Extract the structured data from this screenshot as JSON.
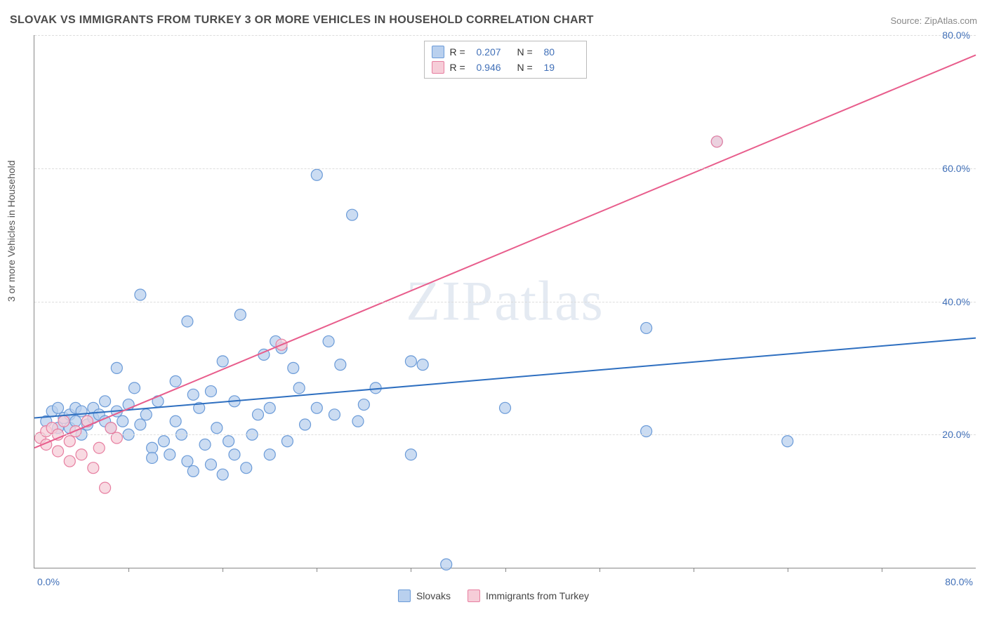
{
  "title": "SLOVAK VS IMMIGRANTS FROM TURKEY 3 OR MORE VEHICLES IN HOUSEHOLD CORRELATION CHART",
  "source": "Source: ZipAtlas.com",
  "ylabel": "3 or more Vehicles in Household",
  "watermark": "ZIPatlas",
  "chart": {
    "type": "scatter",
    "xlim": [
      0,
      80
    ],
    "ylim": [
      0,
      80
    ],
    "xtick_start": "0.0%",
    "xtick_end": "80.0%",
    "yticks": [
      20,
      40,
      60,
      80
    ],
    "ytick_labels": [
      "20.0%",
      "40.0%",
      "60.0%",
      "80.0%"
    ],
    "xtick_minor": [
      8,
      16,
      24,
      32,
      40,
      48,
      56,
      64,
      72
    ],
    "background_color": "#ffffff",
    "grid_color": "#dddddd",
    "axis_color": "#888888",
    "marker_radius": 8,
    "marker_stroke_width": 1.2,
    "trend_line_width": 2
  },
  "series": [
    {
      "name": "Slovaks",
      "fill": "#b9d0ee",
      "stroke": "#6b9bd8",
      "line_color": "#2e6fc0",
      "R": "0.207",
      "N": "80",
      "trend": {
        "x1": 0,
        "y1": 22.5,
        "x2": 80,
        "y2": 34.5
      },
      "points": [
        [
          1,
          22
        ],
        [
          1.5,
          23.5
        ],
        [
          2,
          21
        ],
        [
          2,
          24
        ],
        [
          2.5,
          22.5
        ],
        [
          3,
          23
        ],
        [
          3,
          21
        ],
        [
          3.5,
          24
        ],
        [
          3.5,
          22
        ],
        [
          4,
          23.5
        ],
        [
          4,
          20
        ],
        [
          4.5,
          21.5
        ],
        [
          5,
          24
        ],
        [
          5,
          22.5
        ],
        [
          5.5,
          23
        ],
        [
          6,
          25
        ],
        [
          6,
          22
        ],
        [
          6.5,
          21
        ],
        [
          7,
          23.5
        ],
        [
          7,
          30
        ],
        [
          7.5,
          22
        ],
        [
          8,
          24.5
        ],
        [
          8,
          20
        ],
        [
          8.5,
          27
        ],
        [
          9,
          41
        ],
        [
          9,
          21.5
        ],
        [
          9.5,
          23
        ],
        [
          10,
          18
        ],
        [
          10,
          16.5
        ],
        [
          10.5,
          25
        ],
        [
          11,
          19
        ],
        [
          11.5,
          17
        ],
        [
          12,
          28
        ],
        [
          12,
          22
        ],
        [
          12.5,
          20
        ],
        [
          13,
          37
        ],
        [
          13,
          16
        ],
        [
          13.5,
          26
        ],
        [
          13.5,
          14.5
        ],
        [
          14,
          24
        ],
        [
          14.5,
          18.5
        ],
        [
          15,
          15.5
        ],
        [
          15,
          26.5
        ],
        [
          15.5,
          21
        ],
        [
          16,
          14
        ],
        [
          16,
          31
        ],
        [
          16.5,
          19
        ],
        [
          17,
          25
        ],
        [
          17,
          17
        ],
        [
          17.5,
          38
        ],
        [
          18,
          15
        ],
        [
          18.5,
          20
        ],
        [
          19,
          23
        ],
        [
          19.5,
          32
        ],
        [
          20,
          17
        ],
        [
          20,
          24
        ],
        [
          20.5,
          34
        ],
        [
          21,
          33
        ],
        [
          21.5,
          19
        ],
        [
          22,
          30
        ],
        [
          22.5,
          27
        ],
        [
          23,
          21.5
        ],
        [
          24,
          24
        ],
        [
          24,
          59
        ],
        [
          25,
          34
        ],
        [
          25.5,
          23
        ],
        [
          26,
          30.5
        ],
        [
          27,
          53
        ],
        [
          27.5,
          22
        ],
        [
          28,
          24.5
        ],
        [
          29,
          27
        ],
        [
          32,
          31
        ],
        [
          32,
          17
        ],
        [
          33,
          30.5
        ],
        [
          35,
          0.5
        ],
        [
          40,
          24
        ],
        [
          52,
          36
        ],
        [
          52,
          20.5
        ],
        [
          58,
          64
        ],
        [
          64,
          19
        ]
      ]
    },
    {
      "name": "Immigrants from Turkey",
      "fill": "#f6cdd8",
      "stroke": "#e77ea0",
      "line_color": "#e85d8c",
      "R": "0.946",
      "N": "19",
      "trend": {
        "x1": 0,
        "y1": 18,
        "x2": 80,
        "y2": 77
      },
      "points": [
        [
          0.5,
          19.5
        ],
        [
          1,
          20.5
        ],
        [
          1,
          18.5
        ],
        [
          1.5,
          21
        ],
        [
          2,
          20
        ],
        [
          2,
          17.5
        ],
        [
          2.5,
          22
        ],
        [
          3,
          19
        ],
        [
          3,
          16
        ],
        [
          3.5,
          20.5
        ],
        [
          4,
          17
        ],
        [
          4.5,
          22
        ],
        [
          5,
          15
        ],
        [
          5.5,
          18
        ],
        [
          6,
          12
        ],
        [
          6.5,
          21
        ],
        [
          7,
          19.5
        ],
        [
          21,
          33.5
        ],
        [
          58,
          64
        ]
      ]
    }
  ],
  "legend_top": [
    {
      "swatch_fill": "#b9d0ee",
      "swatch_stroke": "#6b9bd8",
      "r_label": "R =",
      "r_val": "0.207",
      "n_label": "N =",
      "n_val": "80"
    },
    {
      "swatch_fill": "#f6cdd8",
      "swatch_stroke": "#e77ea0",
      "r_label": "R =",
      "r_val": "0.946",
      "n_label": "N =",
      "n_val": "19"
    }
  ],
  "legend_bottom": [
    {
      "swatch_fill": "#b9d0ee",
      "swatch_stroke": "#6b9bd8",
      "label": "Slovaks"
    },
    {
      "swatch_fill": "#f6cdd8",
      "swatch_stroke": "#e77ea0",
      "label": "Immigrants from Turkey"
    }
  ]
}
